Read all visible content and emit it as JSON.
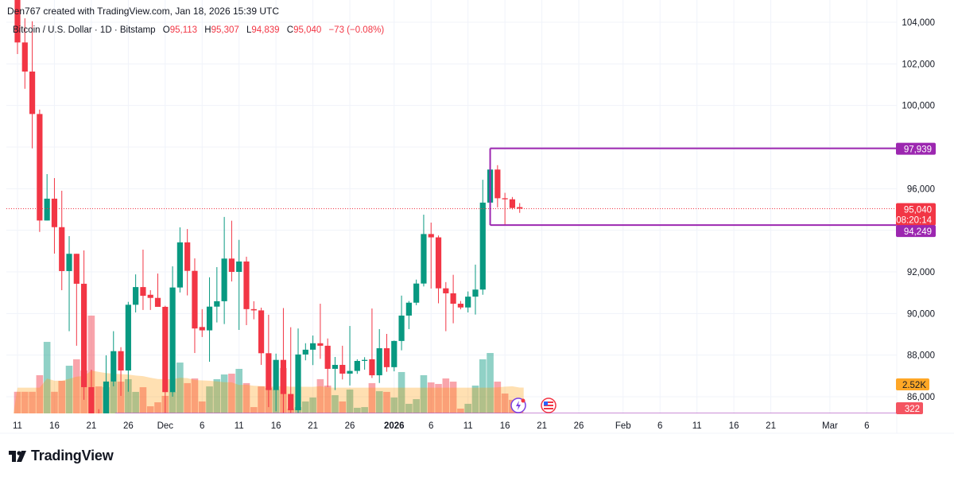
{
  "credit": "Den767 created with TradingView.com, Jan 18, 2026 15:39 UTC",
  "legend": {
    "symbol": "Bitcoin / U.S. Dollar · 1D · Bitstamp",
    "o_label": "O",
    "o": "95,113",
    "h_label": "H",
    "h": "95,307",
    "l_label": "L",
    "l": "94,839",
    "c_label": "C",
    "c": "95,040",
    "change": "−73 (−0.08%)"
  },
  "colors": {
    "up": "#089981",
    "down": "#f23645",
    "range_lines": "#9c27b0",
    "volume_ma": "#ff9800"
  },
  "price_axis": {
    "ticks": [
      {
        "value": 104000,
        "label": "104,000"
      },
      {
        "value": 102000,
        "label": "102,000"
      },
      {
        "value": 100000,
        "label": "100,000"
      },
      {
        "value": 98000,
        "label": ""
      },
      {
        "value": 96000,
        "label": "96,000"
      },
      {
        "value": 94000,
        "label": ""
      },
      {
        "value": 92000,
        "label": "92,000"
      },
      {
        "value": 90000,
        "label": "90,000"
      },
      {
        "value": 88000,
        "label": "88,000"
      },
      {
        "value": 86000,
        "label": "86,000"
      }
    ],
    "range_high": {
      "value": 97939,
      "label": "97,939"
    },
    "range_low": {
      "value": 94249,
      "label": "94,249"
    },
    "last_price": {
      "value": 95040,
      "label": "95,040",
      "countdown": "08:20:14"
    },
    "volume_ma_label": "2.52K",
    "volume_label": "322"
  },
  "time_axis": [
    {
      "date": "2025-11-11",
      "label": "11"
    },
    {
      "date": "2025-11-16",
      "label": "16"
    },
    {
      "date": "2025-11-21",
      "label": "21"
    },
    {
      "date": "2025-11-26",
      "label": "26"
    },
    {
      "date": "2025-12-01",
      "label": "Dec"
    },
    {
      "date": "2025-12-06",
      "label": "6"
    },
    {
      "date": "2025-12-11",
      "label": "11"
    },
    {
      "date": "2025-12-16",
      "label": "16"
    },
    {
      "date": "2025-12-21",
      "label": "21"
    },
    {
      "date": "2025-12-26",
      "label": "26"
    },
    {
      "date": "2026-01-01",
      "label": "2026",
      "bold": true
    },
    {
      "date": "2026-01-06",
      "label": "6"
    },
    {
      "date": "2026-01-11",
      "label": "11"
    },
    {
      "date": "2026-01-16",
      "label": "16"
    },
    {
      "date": "2026-01-21",
      "label": "21"
    },
    {
      "date": "2026-01-26",
      "label": "26"
    },
    {
      "date": "2026-02-01",
      "label": "Feb"
    },
    {
      "date": "2026-02-06",
      "label": "6"
    },
    {
      "date": "2026-02-11",
      "label": "11"
    },
    {
      "date": "2026-02-16",
      "label": "16"
    },
    {
      "date": "2026-02-21",
      "label": "21"
    },
    {
      "date": "2026-03-01",
      "label": "Mar"
    },
    {
      "date": "2026-03-06",
      "label": "6"
    }
  ],
  "chart_data": {
    "type": "candlestick",
    "columns": [
      "date",
      "open",
      "high",
      "low",
      "close",
      "volume_k"
    ],
    "candles": [
      [
        "2025-11-11",
        105200,
        106000,
        102470,
        103030,
        1.85
      ],
      [
        "2025-11-12",
        103030,
        104190,
        100800,
        101630,
        1.85
      ],
      [
        "2025-11-13",
        101630,
        104050,
        97940,
        99590,
        1.85
      ],
      [
        "2025-11-14",
        99590,
        99800,
        93920,
        94470,
        3.27
      ],
      [
        "2025-11-15",
        94470,
        96700,
        94470,
        95520,
        6.12
      ],
      [
        "2025-11-16",
        95520,
        96510,
        92880,
        94150,
        1.85
      ],
      [
        "2025-11-17",
        94150,
        95900,
        91120,
        92040,
        2.79
      ],
      [
        "2025-11-18",
        92040,
        93720,
        89150,
        92870,
        4.08
      ],
      [
        "2025-11-19",
        92870,
        92870,
        88450,
        91430,
        4.63
      ],
      [
        "2025-11-20",
        91430,
        93030,
        85850,
        86460,
        3.67
      ],
      [
        "2025-11-21",
        86460,
        87300,
        84900,
        85200,
        8.37
      ],
      [
        "2025-11-22",
        85200,
        85400,
        84500,
        84800,
        2.31
      ],
      [
        "2025-11-23",
        84700,
        87990,
        84400,
        86730,
        2.24
      ],
      [
        "2025-11-24",
        86730,
        89150,
        86500,
        88190,
        2.72
      ],
      [
        "2025-11-25",
        88190,
        88380,
        86040,
        87260,
        2.72
      ],
      [
        "2025-11-26",
        87260,
        90560,
        86240,
        90420,
        2.93
      ],
      [
        "2025-11-27",
        90420,
        91880,
        90050,
        91270,
        1.84
      ],
      [
        "2025-11-28",
        91270,
        93070,
        90170,
        90850,
        2.24
      ],
      [
        "2025-11-29",
        90900,
        91120,
        90170,
        90750,
        0.61
      ],
      [
        "2025-11-30",
        90750,
        91920,
        90320,
        90320,
        0.95
      ],
      [
        "2025-12-01",
        90320,
        90370,
        85200,
        86220,
        1.5
      ],
      [
        "2025-12-02",
        86220,
        92270,
        86000,
        91250,
        1.84
      ],
      [
        "2025-12-03",
        91250,
        94140,
        91010,
        93420,
        4.35
      ],
      [
        "2025-12-04",
        93420,
        94060,
        90870,
        92050,
        2.59
      ],
      [
        "2025-12-05",
        92050,
        92650,
        88100,
        89280,
        2.99
      ],
      [
        "2025-12-06",
        89350,
        90210,
        88870,
        89190,
        1.02
      ],
      [
        "2025-12-07",
        89190,
        91740,
        87680,
        90330,
        2.31
      ],
      [
        "2025-12-08",
        90330,
        92230,
        89570,
        90590,
        2.93
      ],
      [
        "2025-12-09",
        90590,
        94640,
        89490,
        92640,
        3.33
      ],
      [
        "2025-12-10",
        92640,
        94460,
        91540,
        92000,
        3.4
      ],
      [
        "2025-12-11",
        92000,
        93540,
        89210,
        92500,
        3.81
      ],
      [
        "2025-12-12",
        92500,
        92730,
        89440,
        90210,
        2.59
      ],
      [
        "2025-12-13",
        90210,
        90590,
        89720,
        90150,
        0.54
      ],
      [
        "2025-12-14",
        90150,
        90280,
        87530,
        88090,
        2.31
      ],
      [
        "2025-12-15",
        88090,
        89940,
        85500,
        86320,
        2.18
      ],
      [
        "2025-12-16",
        86320,
        88070,
        85300,
        87770,
        2.04
      ],
      [
        "2025-12-17",
        87770,
        90260,
        85200,
        86130,
        3.88
      ],
      [
        "2025-12-18",
        86130,
        89340,
        84900,
        85350,
        0.4
      ],
      [
        "2025-12-19",
        85350,
        89280,
        85100,
        88030,
        0.54
      ],
      [
        "2025-12-20",
        88030,
        88570,
        87750,
        88260,
        1.02
      ],
      [
        "2025-12-21",
        88260,
        88940,
        87520,
        88570,
        1.36
      ],
      [
        "2025-12-22",
        88570,
        90470,
        87820,
        88450,
        2.93
      ],
      [
        "2025-12-23",
        88450,
        88800,
        86470,
        87340,
        2.38
      ],
      [
        "2025-12-24",
        87340,
        87910,
        86320,
        87530,
        1.56
      ],
      [
        "2025-12-25",
        87530,
        88450,
        86830,
        87110,
        1.02
      ],
      [
        "2025-12-26",
        87110,
        89400,
        86540,
        87240,
        2.04
      ],
      [
        "2025-12-27",
        87240,
        87800,
        87100,
        87720,
        0.48
      ],
      [
        "2025-12-28",
        87720,
        87900,
        87300,
        87770,
        0.54
      ],
      [
        "2025-12-29",
        87800,
        90240,
        86900,
        87030,
        2.59
      ],
      [
        "2025-12-30",
        87030,
        89250,
        86660,
        88330,
        1.9
      ],
      [
        "2025-12-31",
        88330,
        89020,
        87200,
        87420,
        1.84
      ],
      [
        "2026-01-01",
        87420,
        88700,
        87220,
        88680,
        1.36
      ],
      [
        "2026-01-02",
        88680,
        90860,
        88230,
        89900,
        3.54
      ],
      [
        "2026-01-03",
        89900,
        90600,
        89250,
        90520,
        0.82
      ],
      [
        "2026-01-04",
        90520,
        91630,
        90400,
        91440,
        1.22
      ],
      [
        "2026-01-05",
        91440,
        94750,
        91300,
        93820,
        3.27
      ],
      [
        "2026-01-06",
        93820,
        94370,
        91200,
        93660,
        2.65
      ],
      [
        "2026-01-07",
        93660,
        93750,
        90490,
        91210,
        2.52
      ],
      [
        "2026-01-08",
        91210,
        91510,
        89150,
        90970,
        2.99
      ],
      [
        "2026-01-09",
        90970,
        91860,
        89530,
        90470,
        2.72
      ],
      [
        "2026-01-10",
        90470,
        90600,
        90200,
        90290,
        0.41
      ],
      [
        "2026-01-11",
        90290,
        91060,
        90050,
        90810,
        0.82
      ],
      [
        "2026-01-12",
        90810,
        92350,
        89950,
        91150,
        2.38
      ],
      [
        "2026-01-13",
        91150,
        96430,
        90900,
        95330,
        4.63
      ],
      [
        "2026-01-14",
        95330,
        97940,
        95200,
        96920,
        5.17
      ],
      [
        "2026-01-15",
        96920,
        97130,
        95100,
        95540,
        2.72
      ],
      [
        "2026-01-16",
        95540,
        95800,
        94220,
        95490,
        1.7
      ],
      [
        "2026-01-17",
        95490,
        95600,
        95000,
        95070,
        1.16
      ],
      [
        "2026-01-18",
        95113,
        95307,
        94839,
        95040,
        0.322
      ]
    ],
    "range_box": {
      "start": "2026-01-14",
      "high": 97939,
      "low": 94249
    },
    "y_range": [
      85200,
      104000
    ],
    "grid": true
  },
  "footer": {
    "brand": "TradingView"
  }
}
